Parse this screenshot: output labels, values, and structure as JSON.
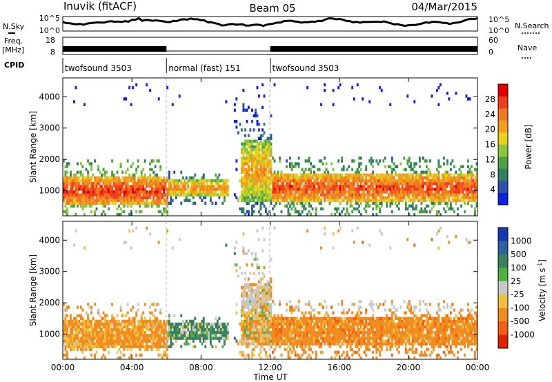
{
  "header": {
    "station": "Inuvik (fitACF)",
    "beam": "Beam 05",
    "date": "04/Mar/2015"
  },
  "top_panels": {
    "nsky_label": "N.Sky",
    "nsky_ticks": [
      "10^5",
      "10^0"
    ],
    "nsearch_label": "N.Search",
    "nsearch_ticks": [
      "10^5",
      "10^0"
    ],
    "freq_label_line1": "Freq.",
    "freq_label_line2": "[MHz]",
    "freq_ticks": [
      "18",
      "8"
    ],
    "nave_label": "Nave",
    "nave_ticks": [
      "60",
      "0"
    ],
    "cpid_label": "CPID",
    "cpid_segments": [
      {
        "label": "twofsound 3503",
        "start_hour": 0,
        "end_hour": 6
      },
      {
        "label": "normal (fast) 151",
        "start_hour": 6,
        "end_hour": 12
      },
      {
        "label": "twofsound 3503",
        "start_hour": 12,
        "end_hour": 24
      }
    ]
  },
  "x_axis": {
    "label": "Time UT",
    "ticks": [
      "00:00",
      "04:00",
      "08:00",
      "12:00",
      "16:00",
      "20:00",
      "00:00"
    ]
  },
  "y_axis": {
    "label": "Slant Range [km]",
    "ticks": [
      "1000",
      "2000",
      "3000",
      "4000"
    ]
  },
  "power_colorbar": {
    "label": "Power [dB]",
    "ticks": [
      "4",
      "8",
      "12",
      "16",
      "20",
      "24",
      "28"
    ],
    "colors": [
      "#1020e0",
      "#3050b0",
      "#2f7f60",
      "#4fa040",
      "#88c840",
      "#e8d020",
      "#f0a020",
      "#f07820",
      "#ee4020",
      "#e00000"
    ]
  },
  "velocity_colorbar": {
    "label": "Velocity [m s^-1]",
    "ticks": [
      "1000",
      "500",
      "100",
      "25",
      "-25",
      "-100",
      "-500",
      "-1000"
    ],
    "colors": [
      "#1838b0",
      "#2f60a0",
      "#3a8060",
      "#50b040",
      "#c8c8c8",
      "#f0c040",
      "#f08c20",
      "#f06010",
      "#e02000"
    ]
  },
  "chart_data": [
    {
      "type": "heatmap",
      "title": "Power",
      "xlabel": "Time UT",
      "ylabel": "Slant Range [km]",
      "xlim": [
        0,
        24
      ],
      "ylim": [
        200,
        4600
      ],
      "colorbar_label": "Power [dB]",
      "dominant_bands_km": [
        {
          "start_hour": 0,
          "end_hour": 6,
          "range": [
            500,
            1400
          ],
          "level_db": 26
        },
        {
          "start_hour": 6,
          "end_hour": 9.5,
          "range": [
            800,
            1300
          ],
          "level_db": 22
        },
        {
          "start_hour": 10,
          "end_hour": 12,
          "range": [
            600,
            2600
          ],
          "level_db": 20
        },
        {
          "start_hour": 12,
          "end_hour": 24,
          "range": [
            600,
            1500
          ],
          "level_db": 25
        }
      ]
    },
    {
      "type": "heatmap",
      "title": "Velocity",
      "xlabel": "Time UT",
      "ylabel": "Slant Range [km]",
      "xlim": [
        0,
        24
      ],
      "ylim": [
        200,
        4600
      ],
      "colorbar_label": "Velocity [m s^-1]",
      "dominant_bands_km": [
        {
          "start_hour": 0,
          "end_hour": 6,
          "range": [
            500,
            1500
          ],
          "velocity": -150
        },
        {
          "start_hour": 6,
          "end_hour": 9.5,
          "range": [
            800,
            1300
          ],
          "velocity": 80
        },
        {
          "start_hour": 10,
          "end_hour": 12,
          "range": [
            600,
            2600
          ],
          "velocity": -80
        },
        {
          "start_hour": 12,
          "end_hour": 24,
          "range": [
            600,
            1600
          ],
          "velocity": -200
        }
      ]
    }
  ]
}
